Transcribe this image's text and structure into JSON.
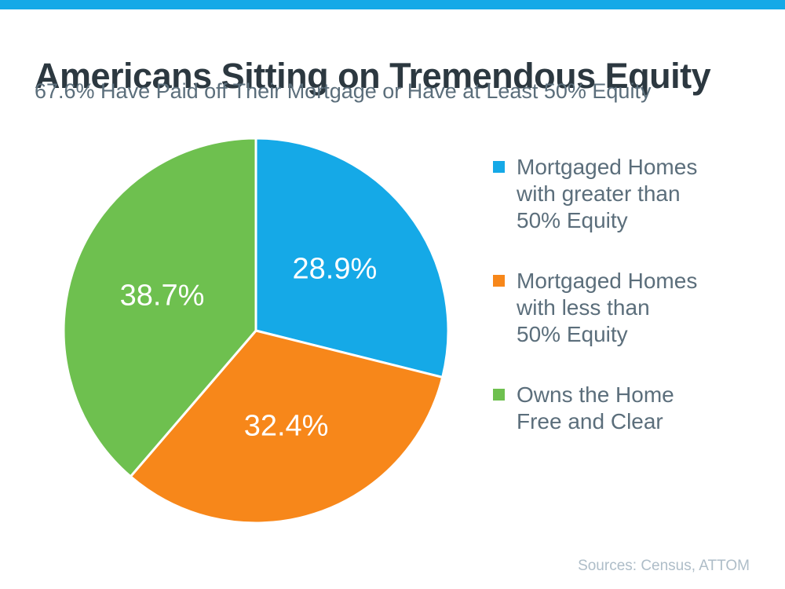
{
  "page": {
    "accent_bar_color": "#15A9E7"
  },
  "header": {
    "title": "Americans Sitting on Tremendous Equity",
    "subtitle": "67.6% Have Paid off Their Mortgage or Have at Least 50% Equity"
  },
  "chart_data": {
    "type": "pie",
    "title": "Americans Sitting on Tremendous Equity",
    "subtitle": "67.6% Have Paid off Their Mortgage or Have at Least 50% Equity",
    "start_angle_deg": 0,
    "direction": "clockwise",
    "legend_position": "right",
    "slice_label_color": "#FFFFFF",
    "slices": [
      {
        "label": "Mortgaged Homes with greater than 50% Equity",
        "value": 28.9,
        "display": "28.9%",
        "color": "#15A9E7"
      },
      {
        "label": "Mortgaged Homes with less than 50% Equity",
        "value": 32.4,
        "display": "32.4%",
        "color": "#F7871A"
      },
      {
        "label": "Owns the Home Free and Clear",
        "value": 38.7,
        "display": "38.7%",
        "color": "#6EC04F"
      }
    ]
  },
  "legend": {
    "items": [
      {
        "color": "#15A9E7",
        "lines": [
          "Mortgaged Homes",
          "with greater than",
          "50% Equity"
        ]
      },
      {
        "color": "#F7871A",
        "lines": [
          "Mortgaged Homes",
          "with less than",
          "50% Equity"
        ]
      },
      {
        "color": "#6EC04F",
        "lines": [
          "Owns the Home",
          "Free and Clear"
        ]
      }
    ]
  },
  "footer": {
    "source": "Sources: Census, ATTOM"
  }
}
